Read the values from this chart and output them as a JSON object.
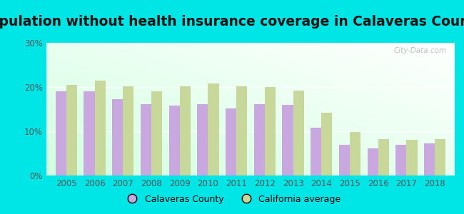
{
  "title": "Population without health insurance coverage in Calaveras County",
  "years": [
    2005,
    2006,
    2007,
    2008,
    2009,
    2010,
    2011,
    2012,
    2013,
    2014,
    2015,
    2016,
    2017,
    2018
  ],
  "calaveras": [
    19.0,
    19.0,
    17.2,
    16.2,
    15.8,
    16.2,
    15.2,
    16.2,
    16.0,
    10.8,
    7.0,
    6.2,
    7.0,
    7.2
  ],
  "california": [
    20.5,
    21.5,
    20.2,
    19.0,
    20.2,
    20.8,
    20.2,
    20.0,
    19.2,
    14.2,
    9.8,
    8.2,
    8.0,
    8.2
  ],
  "bar_color_calaveras": "#c9a8e0",
  "bar_color_california": "#c8d89a",
  "background_outer": "#00e5e5",
  "ylim": [
    0,
    30
  ],
  "yticks": [
    0,
    10,
    20,
    30
  ],
  "ytick_labels": [
    "0%",
    "10%",
    "20%",
    "30%"
  ],
  "watermark": "City-Data.com",
  "legend_calaveras": "Calaveras County",
  "legend_california": "California average",
  "bar_width": 0.38,
  "title_fontsize": 13.5,
  "tick_fontsize": 8.5
}
